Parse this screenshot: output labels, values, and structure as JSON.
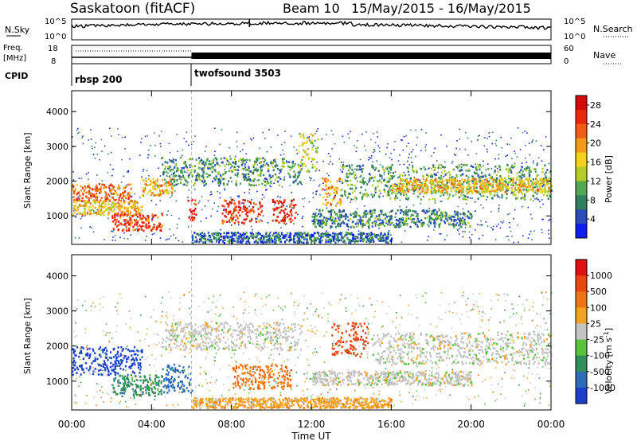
{
  "header": {
    "title": "Saskatoon (fitACF)",
    "beam": "Beam 10",
    "dates": "15/May/2015 - 16/May/2015"
  },
  "top_panels": {
    "nsky_label": "N.Sky",
    "nsearch_label": "N.Search",
    "nsky_ticks": [
      "10^5",
      "10^0"
    ],
    "nsky_right_ticks": [
      "10^5",
      "10^0"
    ],
    "freq_label": "Freq.",
    "freq_unit": "[MHz]",
    "freq_ticks": [
      "18",
      "8"
    ],
    "nave_label": "Nave",
    "nave_ticks": [
      "60",
      "0"
    ],
    "cpid_label": "CPID",
    "cpid_segments": [
      {
        "name": "rbsp 200",
        "start_hour": 0,
        "end_hour": 6
      },
      {
        "name": "twofsound 3503",
        "start_hour": 6,
        "end_hour": 24
      }
    ]
  },
  "chart_data": [
    {
      "type": "heatmap",
      "name": "power",
      "ylabel": "Slant Range [km]",
      "xlabel": "Time UT",
      "x_ticks": [
        "00:00",
        "04:00",
        "08:00",
        "12:00",
        "16:00",
        "20:00",
        "00:00"
      ],
      "xlim_hours": [
        0,
        24
      ],
      "y_ticks": [
        1000,
        2000,
        3000,
        4000
      ],
      "ylim": [
        180,
        4600
      ],
      "colorbar": {
        "label": "Power [dB]",
        "ticks": [
          4,
          8,
          12,
          16,
          20,
          24,
          28
        ],
        "range": [
          0,
          30
        ],
        "colors": [
          "#0a1ef0",
          "#2a4cb8",
          "#2f7f5f",
          "#52a852",
          "#b6cc2a",
          "#f3d21c",
          "#f39a18",
          "#f05c14",
          "#e8280c",
          "#d40a0a"
        ]
      },
      "bands": [
        {
          "r0": 1450,
          "r1": 1950,
          "h0": 0.0,
          "h1": 3.0,
          "value": 22
        },
        {
          "r0": 1050,
          "r1": 1450,
          "h0": 0.0,
          "h1": 3.5,
          "value": 17
        },
        {
          "r0": 600,
          "r1": 1100,
          "h0": 2.0,
          "h1": 4.5,
          "value": 24
        },
        {
          "r0": 1600,
          "r1": 2100,
          "h0": 3.5,
          "h1": 5.0,
          "value": 18
        },
        {
          "r0": 900,
          "r1": 1500,
          "h0": 5.8,
          "h1": 6.2,
          "value": 26
        },
        {
          "r0": 800,
          "r1": 1500,
          "h0": 7.5,
          "h1": 9.5,
          "value": 25
        },
        {
          "r0": 800,
          "r1": 1500,
          "h0": 10.0,
          "h1": 11.2,
          "value": 26
        },
        {
          "r0": 1900,
          "r1": 2700,
          "h0": 4.5,
          "h1": 11.5,
          "value": 9
        },
        {
          "r0": 2300,
          "r1": 3400,
          "h0": 11.3,
          "h1": 12.3,
          "value": 14
        },
        {
          "r0": 1300,
          "r1": 2100,
          "h0": 12.5,
          "h1": 13.5,
          "value": 20
        },
        {
          "r0": 1500,
          "r1": 2500,
          "h0": 13.5,
          "h1": 24.0,
          "value": 10
        },
        {
          "r0": 1700,
          "r1": 2100,
          "h0": 16.0,
          "h1": 24.0,
          "value": 17
        },
        {
          "r0": 700,
          "r1": 1200,
          "h0": 12.0,
          "h1": 20.0,
          "value": 8
        },
        {
          "r0": 250,
          "r1": 550,
          "h0": 6.0,
          "h1": 16.0,
          "value": 6
        }
      ]
    },
    {
      "type": "heatmap",
      "name": "velocity",
      "ylabel": "Slant Range [km]",
      "xlabel": "Time UT",
      "x_ticks": [
        "00:00",
        "04:00",
        "08:00",
        "12:00",
        "16:00",
        "20:00",
        "00:00"
      ],
      "xlim_hours": [
        0,
        24
      ],
      "y_ticks": [
        1000,
        2000,
        3000,
        4000
      ],
      "ylim": [
        180,
        4600
      ],
      "colorbar": {
        "label": "Velocity [m s-1]",
        "ticks": [
          1000,
          500,
          100,
          25,
          -25,
          -100,
          -500,
          -1000
        ],
        "colors": [
          "#1a3fcc",
          "#2d6cb8",
          "#2f8f5a",
          "#58c43a",
          "#c4c4c4",
          "#f2a222",
          "#ef7414",
          "#e8480e",
          "#e01010"
        ]
      },
      "bands": [
        {
          "r0": 1200,
          "r1": 2000,
          "h0": 0.0,
          "h1": 3.5,
          "value": 0
        },
        {
          "r0": 600,
          "r1": 1200,
          "h0": 2.0,
          "h1": 4.5,
          "value": 2
        },
        {
          "r0": 700,
          "r1": 1500,
          "h0": 4.5,
          "h1": 6.0,
          "value": 1
        },
        {
          "r0": 800,
          "r1": 1500,
          "h0": 8.0,
          "h1": 11.0,
          "value": 6
        },
        {
          "r0": 1900,
          "r1": 2700,
          "h0": 4.5,
          "h1": 11.5,
          "value": 4
        },
        {
          "r0": 1700,
          "r1": 2700,
          "h0": 13.0,
          "h1": 14.8,
          "value": 7
        },
        {
          "r0": 1500,
          "r1": 2400,
          "h0": 15.0,
          "h1": 24.0,
          "value": 4
        },
        {
          "r0": 900,
          "r1": 1300,
          "h0": 12.0,
          "h1": 20.0,
          "value": 4
        },
        {
          "r0": 250,
          "r1": 550,
          "h0": 6.0,
          "h1": 16.0,
          "value": 5
        }
      ]
    }
  ]
}
